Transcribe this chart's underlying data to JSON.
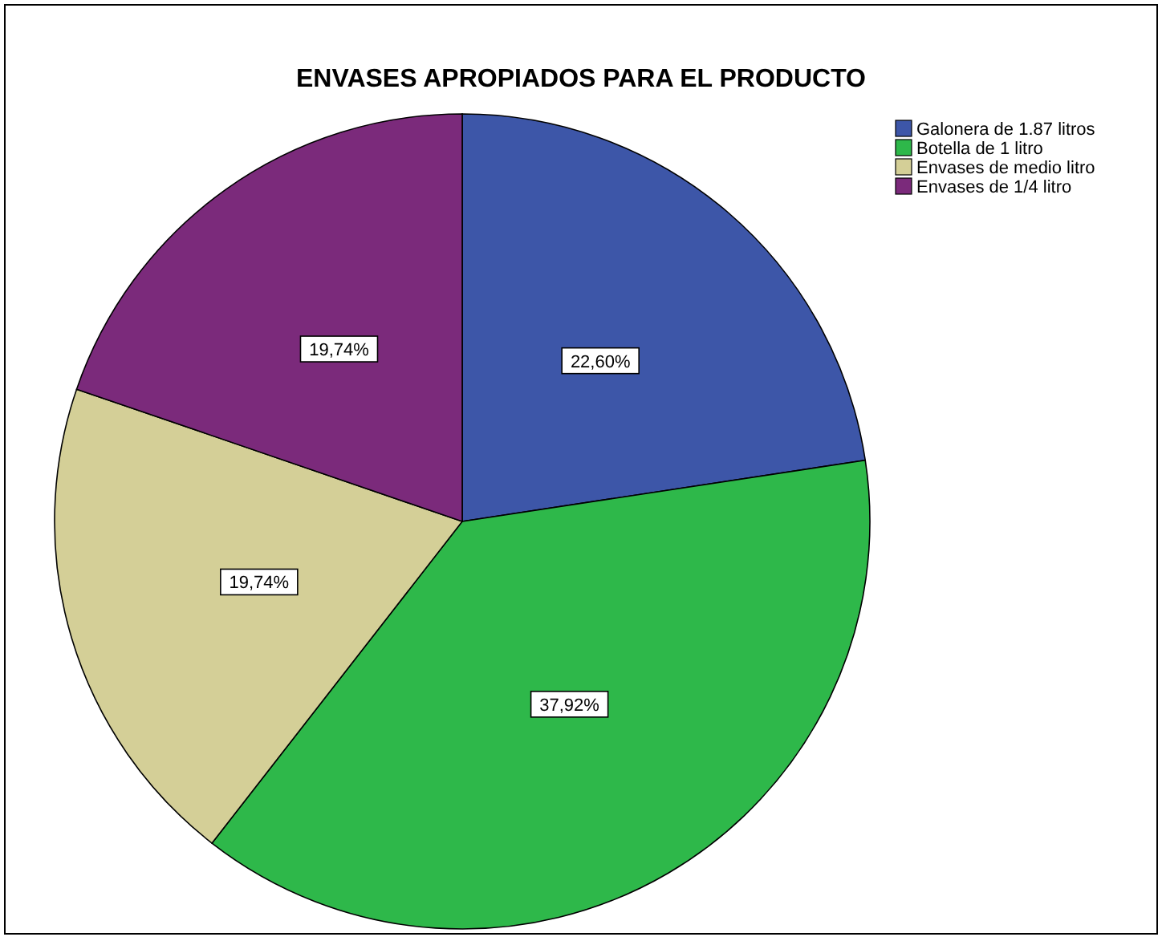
{
  "chart_data": {
    "type": "pie",
    "title": "ENVASES APROPIADOS PARA EL PRODUCTO",
    "categories": [
      "Galonera de 1.87 litros",
      "Botella de 1 litro",
      "Envases de medio litro",
      "Envases de 1/4 litro"
    ],
    "values": [
      22.6,
      37.92,
      19.74,
      19.74
    ],
    "colors": [
      "#3d56a8",
      "#2eb84a",
      "#d4cf97",
      "#7b2a7b"
    ],
    "value_labels": [
      "22,60%",
      "37,92%",
      "19,74%",
      "19,74%"
    ],
    "legend": "top right"
  }
}
